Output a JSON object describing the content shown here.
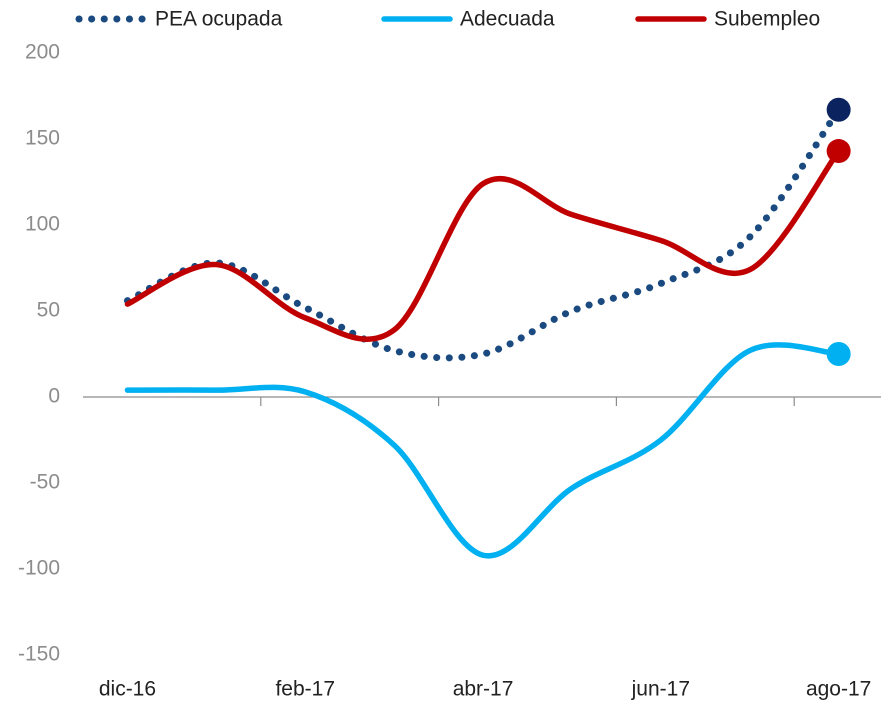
{
  "chart_data": {
    "type": "line",
    "categories": [
      "dic-16",
      null,
      "feb-17",
      null,
      "abr-17",
      null,
      "jun-17",
      null,
      "ago-17"
    ],
    "series": [
      {
        "name": "PEA ocupada",
        "color": "#1a4a80",
        "marker_color": "#0b2460",
        "style": "dotted",
        "values": [
          56,
          78,
          52,
          27,
          25,
          50,
          66,
          93,
          167
        ]
      },
      {
        "name": "Adecuada",
        "color": "#00b0f0",
        "marker_color": "#00b0f0",
        "style": "solid",
        "values": [
          4,
          4,
          3,
          -28,
          -92,
          -53,
          -25,
          27,
          25
        ]
      },
      {
        "name": "Subempleo",
        "color": "#c00000",
        "marker_color": "#c00000",
        "style": "solid",
        "values": [
          54,
          77,
          46,
          39,
          124,
          106,
          91,
          74,
          143
        ]
      }
    ],
    "ylim": [
      -150,
      200
    ],
    "yticks": [
      -150,
      -100,
      -50,
      0,
      50,
      100,
      150,
      200
    ],
    "end_marker": true,
    "grid": false
  }
}
